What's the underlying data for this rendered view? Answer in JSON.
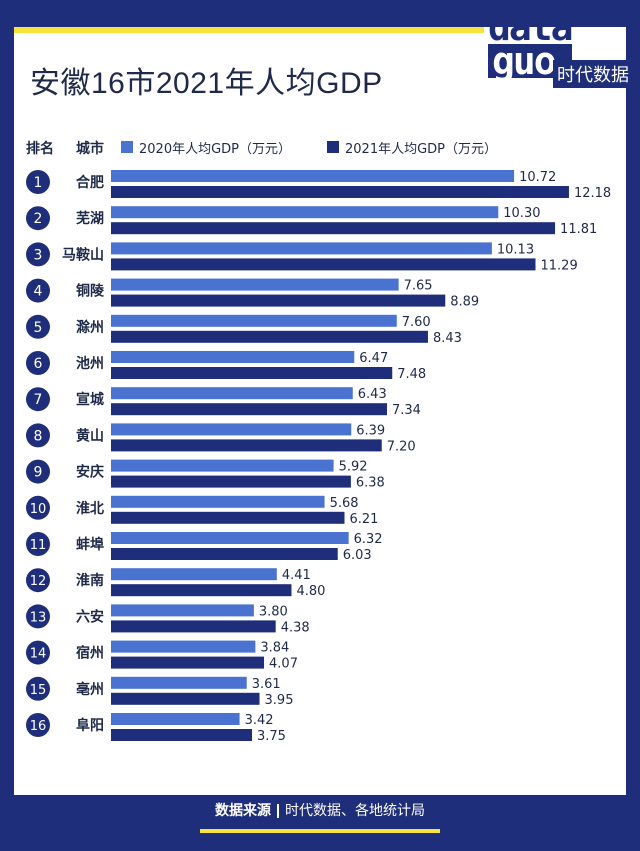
{
  "title": "安徽16市2021年人均GDP",
  "logo": {
    "word_top": "data",
    "word_bottom": "guo",
    "subtitle": "时代数据"
  },
  "headers": {
    "rank": "排名",
    "city": "城市"
  },
  "footer": {
    "source_label": "数据来源",
    "source_text": "时代数据、各地统计局"
  },
  "colors": {
    "series_2020": "#4a73d1",
    "series_2021": "#1f2e7a",
    "frame": "#1f2e7a",
    "accent": "#f7e33b"
  },
  "chart_data": {
    "type": "bar",
    "orientation": "horizontal",
    "title": "安徽16市2021年人均GDP",
    "categories": [
      "合肥",
      "芜湖",
      "马鞍山",
      "铜陵",
      "滁州",
      "池州",
      "宣城",
      "黄山",
      "安庆",
      "淮北",
      "蚌埠",
      "淮南",
      "六安",
      "宿州",
      "亳州",
      "阜阳"
    ],
    "ranks": [
      "1",
      "2",
      "3",
      "4",
      "5",
      "6",
      "7",
      "8",
      "9",
      "10",
      "11",
      "12",
      "13",
      "14",
      "15",
      "16"
    ],
    "series": [
      {
        "name": "2020年人均GDP（万元）",
        "values": [
          10.72,
          10.3,
          10.13,
          7.65,
          7.6,
          6.47,
          6.43,
          6.39,
          5.92,
          5.68,
          6.32,
          4.41,
          3.8,
          3.84,
          3.61,
          3.42
        ]
      },
      {
        "name": "2021年人均GDP（万元）",
        "values": [
          12.18,
          11.81,
          11.29,
          8.89,
          8.43,
          7.48,
          7.34,
          7.2,
          6.38,
          6.21,
          6.03,
          4.8,
          4.38,
          4.07,
          3.95,
          3.75
        ]
      }
    ],
    "value_labels": [
      [
        "10.72",
        "10.30",
        "10.13",
        "7.65",
        "7.60",
        "6.47",
        "6.43",
        "6.39",
        "5.92",
        "5.68",
        "6.32",
        "4.41",
        "3.80",
        "3.84",
        "3.61",
        "3.42"
      ],
      [
        "12.18",
        "11.81",
        "11.29",
        "8.89",
        "8.43",
        "7.48",
        "7.34",
        "7.20",
        "6.38",
        "6.21",
        "6.03",
        "4.80",
        "4.38",
        "4.07",
        "3.95",
        "3.75"
      ]
    ],
    "xlim": [
      0,
      12.5
    ],
    "legend_position": "top",
    "grid": false
  }
}
